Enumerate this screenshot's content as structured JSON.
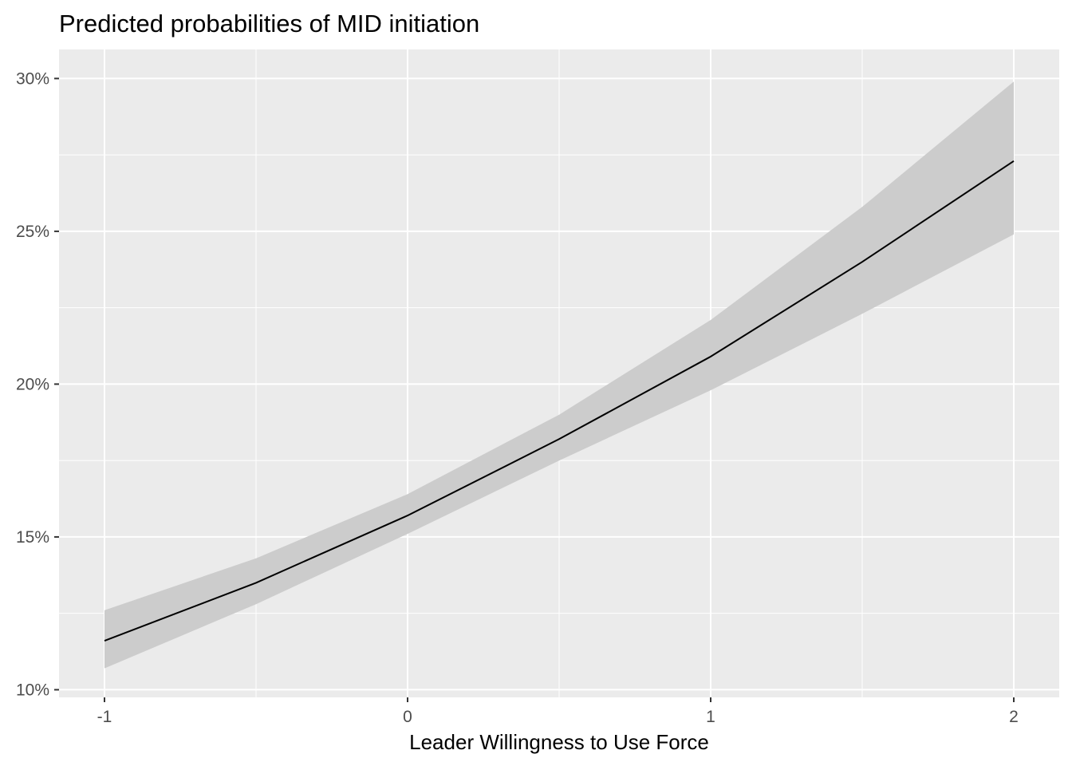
{
  "chart_data": {
    "type": "line",
    "title": "Predicted probabilities of MID initiation",
    "xlabel": "Leader Willingness to Use Force",
    "ylabel": "",
    "x": [
      -1,
      -0.5,
      0,
      0.5,
      1,
      1.5,
      2
    ],
    "series": [
      {
        "values": [
          11.6,
          13.5,
          15.7,
          18.2,
          20.9,
          24.0,
          27.3
        ],
        "ci_lower": [
          10.7,
          12.8,
          15.1,
          17.5,
          19.8,
          22.3,
          24.9
        ],
        "ci_upper": [
          12.6,
          14.3,
          16.4,
          19.0,
          22.1,
          25.8,
          29.9
        ]
      }
    ],
    "xticks": [
      -1,
      0,
      1,
      2
    ],
    "xtick_labels": [
      "-1",
      "0",
      "1",
      "2"
    ],
    "yticks": [
      10,
      15,
      20,
      25,
      30
    ],
    "ytick_labels": [
      "10%",
      "15%",
      "20%",
      "25%",
      "30%"
    ],
    "xlim": [
      -1.15,
      2.15
    ],
    "ylim": [
      9.75,
      30.95
    ],
    "grid": true,
    "legend": "none",
    "colors": {
      "panel": "#ebebeb",
      "grid": "#ffffff",
      "band": "#cccccc",
      "line": "#000000",
      "tick": "#333333",
      "tick_text": "#4d4d4d"
    }
  }
}
